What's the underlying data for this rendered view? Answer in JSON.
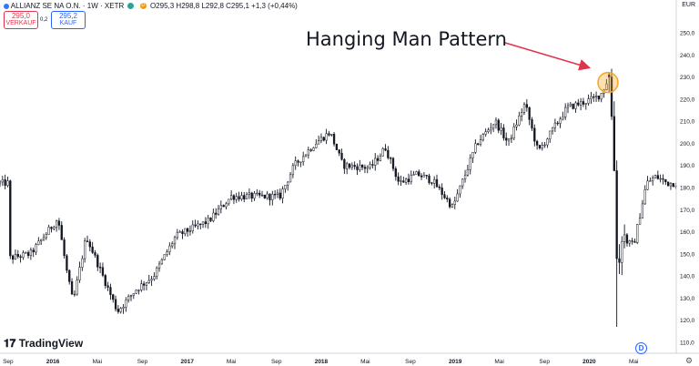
{
  "header": {
    "title": "ALLIANZ SE NA O.N. · 1W · XETR",
    "ohlc": "O295,3  H298,8  L292,8  C295,1  +1,3 (+0,44%)",
    "d_badge": "D"
  },
  "sell": {
    "price": "295,0",
    "label": "VERKAUF"
  },
  "buy": {
    "price": "295,2",
    "label": "KAUF"
  },
  "spread": "0,2",
  "currency": "EUR",
  "brand": "TradingView",
  "footer_badge": "D",
  "icons": {
    "settings": "gear-icon",
    "logo": "tradingview-logo-icon"
  },
  "colors": {
    "candle": "#131722",
    "annotation_arrow": "#e0344a",
    "highlight": "#f5a623",
    "sell": "#e0344a",
    "buy": "#2962ff"
  },
  "chart_data": {
    "type": "candlestick",
    "title": "Hanging Man Pattern",
    "xlabel": "",
    "ylabel": "",
    "ylim": [
      107,
      257
    ],
    "yticks": [
      "250,0",
      "240,0",
      "230,0",
      "220,0",
      "210,0",
      "200,0",
      "190,0",
      "180,0",
      "170,0",
      "160,0",
      "150,0",
      "140,0",
      "130,0",
      "120,0",
      "110,0"
    ],
    "xticks": [
      "Sep",
      "2016",
      "Mai",
      "Sep",
      "2017",
      "Mai",
      "Sep",
      "2018",
      "Mai",
      "Sep",
      "2019",
      "Mai",
      "Sep",
      "2020",
      "Mai"
    ],
    "anchors": [
      [
        "2015-09-01",
        148
      ],
      [
        "2015-11-01",
        150
      ],
      [
        "2016-01-15",
        166
      ],
      [
        "2016-02-10",
        140
      ],
      [
        "2016-02-25",
        128
      ],
      [
        "2016-04-01",
        158
      ],
      [
        "2016-06-25",
        124
      ],
      [
        "2016-08-15",
        134
      ],
      [
        "2016-10-01",
        140
      ],
      [
        "2016-12-01",
        158
      ],
      [
        "2017-03-01",
        165
      ],
      [
        "2017-05-01",
        176
      ],
      [
        "2017-07-01",
        176
      ],
      [
        "2017-09-10",
        176
      ],
      [
        "2017-10-20",
        190
      ],
      [
        "2017-12-15",
        200
      ],
      [
        "2018-01-25",
        205
      ],
      [
        "2018-03-01",
        190
      ],
      [
        "2018-05-15",
        189
      ],
      [
        "2018-06-25",
        198
      ],
      [
        "2018-08-01",
        182
      ],
      [
        "2018-09-20",
        186
      ],
      [
        "2018-11-01",
        183
      ],
      [
        "2018-12-25",
        171
      ],
      [
        "2019-03-01",
        200
      ],
      [
        "2019-04-20",
        210
      ],
      [
        "2019-05-25",
        200
      ],
      [
        "2019-07-10",
        218
      ],
      [
        "2019-08-15",
        196
      ],
      [
        "2019-11-01",
        216
      ],
      [
        "2020-01-10",
        220
      ],
      [
        "2020-02-01",
        222
      ],
      [
        "2020-02-21",
        229
      ],
      [
        "2020-03-06",
        205
      ],
      [
        "2020-03-19",
        135
      ],
      [
        "2020-03-28",
        160
      ],
      [
        "2020-04-15",
        155
      ],
      [
        "2020-05-01",
        154
      ],
      [
        "2020-06-05",
        182
      ],
      [
        "2020-07-01",
        185
      ],
      [
        "2020-08-01",
        182
      ]
    ],
    "hanging_man": {
      "date": "2020-02-21",
      "open": 231,
      "high": 232,
      "low": 223,
      "close": 230
    },
    "highlight": "Hanging Man Pattern"
  }
}
